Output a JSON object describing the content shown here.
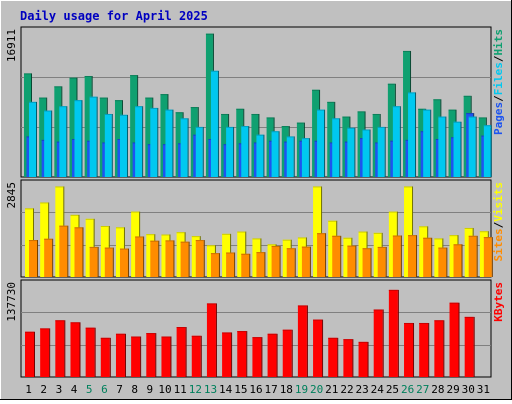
{
  "title": "Daily usage for April 2025",
  "colors": {
    "background": "#c0c0c0",
    "title": "#0000c0",
    "hits": "#0fa070",
    "files": "#00c8f0",
    "pages": "#1d54f0",
    "visits": "#ffff00",
    "sites": "#ff8c00",
    "kbytes": "#ff0000",
    "weekend_label": "#00805c",
    "weekday_label": "#000000"
  },
  "chart_data": [
    {
      "type": "bar",
      "panel": "top",
      "ymax_label": "16911",
      "ylim": [
        0,
        16911
      ],
      "right_label": [
        "Pages",
        "Files",
        "Hits"
      ],
      "categories": [
        "1",
        "2",
        "3",
        "4",
        "5",
        "6",
        "7",
        "8",
        "9",
        "10",
        "11",
        "12",
        "13",
        "14",
        "15",
        "16",
        "17",
        "18",
        "19",
        "20",
        "21",
        "22",
        "23",
        "24",
        "25",
        "26",
        "27",
        "28",
        "29",
        "30",
        "31"
      ],
      "weekend_days": [
        "5",
        "6",
        "12",
        "13",
        "19",
        "20",
        "26",
        "27"
      ],
      "series": [
        {
          "name": "Hits",
          "values": [
            12000,
            9200,
            10500,
            11500,
            11700,
            9200,
            8900,
            11800,
            9200,
            9600,
            7500,
            8100,
            16600,
            7300,
            7900,
            7300,
            6900,
            5900,
            6300,
            10100,
            8700,
            7000,
            7600,
            7300,
            10800,
            14600,
            7900,
            9000,
            7800,
            9400,
            6900
          ]
        },
        {
          "name": "Files",
          "values": [
            8700,
            7700,
            8200,
            8900,
            9300,
            7300,
            7200,
            8200,
            8000,
            7800,
            6800,
            5800,
            12300,
            5800,
            5900,
            4900,
            5300,
            4700,
            4500,
            7800,
            6800,
            5700,
            5500,
            5800,
            8200,
            9800,
            7800,
            7000,
            6400,
            7000,
            6000
          ]
        },
        {
          "name": "Pages",
          "values": [
            4700,
            4300,
            4100,
            4400,
            4200,
            4000,
            4400,
            4000,
            3800,
            3800,
            3900,
            4900,
            4400,
            3800,
            3900,
            4000,
            4200,
            4100,
            4200,
            4200,
            4000,
            4100,
            4500,
            4000,
            4200,
            4300,
            5300,
            4400,
            4600,
            7400,
            4800
          ]
        }
      ]
    },
    {
      "type": "bar",
      "panel": "middle",
      "ymax_label": "2845",
      "ylim": [
        0,
        2845
      ],
      "right_label": [
        "Sites",
        "Visits"
      ],
      "categories": [
        "1",
        "2",
        "3",
        "4",
        "5",
        "6",
        "7",
        "8",
        "9",
        "10",
        "11",
        "12",
        "13",
        "14",
        "15",
        "16",
        "17",
        "18",
        "19",
        "20",
        "21",
        "22",
        "23",
        "24",
        "25",
        "26",
        "27",
        "28",
        "29",
        "30",
        "31"
      ],
      "series": [
        {
          "name": "Visits",
          "values": [
            2100,
            2280,
            2770,
            1900,
            1780,
            1560,
            1520,
            2000,
            1310,
            1300,
            1370,
            1250,
            970,
            1320,
            1390,
            1180,
            1000,
            1140,
            1210,
            2770,
            1720,
            1200,
            1390,
            1350,
            2000,
            2770,
            1550,
            1180,
            1280,
            1500,
            1400
          ]
        },
        {
          "name": "Sites",
          "values": [
            1130,
            1170,
            1570,
            1520,
            920,
            900,
            870,
            1240,
            1110,
            1120,
            1080,
            1130,
            730,
            750,
            710,
            760,
            950,
            880,
            930,
            1340,
            1260,
            960,
            880,
            920,
            1270,
            1280,
            1200,
            900,
            1000,
            1260,
            1220
          ]
        }
      ]
    },
    {
      "type": "bar",
      "panel": "bottom",
      "ymax_label": "137730",
      "ylim": [
        0,
        137730
      ],
      "right_label": [
        "KBytes"
      ],
      "categories": [
        "1",
        "2",
        "3",
        "4",
        "5",
        "6",
        "7",
        "8",
        "9",
        "10",
        "11",
        "12",
        "13",
        "14",
        "15",
        "16",
        "17",
        "18",
        "19",
        "20",
        "21",
        "22",
        "23",
        "24",
        "25",
        "26",
        "27",
        "28",
        "29",
        "30",
        "31"
      ],
      "series": [
        {
          "name": "KBytes",
          "values": [
            67000,
            72000,
            84000,
            81000,
            73000,
            58000,
            64000,
            60000,
            65000,
            60000,
            74000,
            61000,
            109000,
            66000,
            68000,
            59000,
            64000,
            70000,
            106000,
            85000,
            58000,
            56000,
            52000,
            100000,
            129000,
            80000,
            80000,
            84000,
            110000,
            89000,
            null
          ]
        }
      ]
    }
  ]
}
